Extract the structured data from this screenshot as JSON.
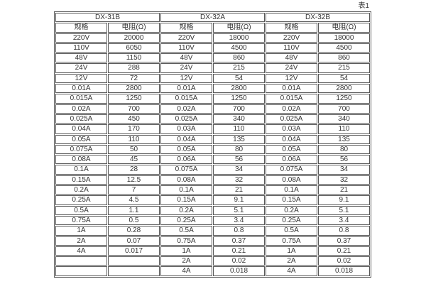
{
  "caption": "表1",
  "colors": {
    "border": "#595959",
    "text": "#333333",
    "background": "#ffffff"
  },
  "table": {
    "groups": [
      {
        "name": "DX-31B",
        "spec_header": "规格",
        "resistance_header": "电阻(Ω)"
      },
      {
        "name": "DX-32A",
        "spec_header": "规格",
        "resistance_header": "电阻(Ω)"
      },
      {
        "name": "DX-32B",
        "spec_header": "规格",
        "resistance_header": "电阻(Ω)"
      }
    ],
    "rows": [
      [
        "220V",
        "20000",
        "220V",
        "18000",
        "220V",
        "18000"
      ],
      [
        "110V",
        "6050",
        "110V",
        "4500",
        "110V",
        "4500"
      ],
      [
        "48V",
        "1150",
        "48V",
        "860",
        "48V",
        "860"
      ],
      [
        "24V",
        "288",
        "24V",
        "215",
        "24V",
        "215"
      ],
      [
        "12V",
        "72",
        "12V",
        "54",
        "12V",
        "54"
      ],
      [
        "0.01A",
        "2800",
        "0.01A",
        "2800",
        "0.01A",
        "2800"
      ],
      [
        "0.015A",
        "1250",
        "0.015A",
        "1250",
        "0.015A",
        "1250"
      ],
      [
        "0.02A",
        "700",
        "0.02A",
        "700",
        "0.02A",
        "700"
      ],
      [
        "0.025A",
        "450",
        "0.025A",
        "340",
        "0.025A",
        "340"
      ],
      [
        "0.04A",
        "170",
        "0.03A",
        "110",
        "0.03A",
        "110"
      ],
      [
        "0.05A",
        "110",
        "0.04A",
        "135",
        "0.04A",
        "135"
      ],
      [
        "0.075A",
        "50",
        "0.05A",
        "80",
        "0.05A",
        "80"
      ],
      [
        "0.08A",
        "45",
        "0.06A",
        "56",
        "0.06A",
        "56"
      ],
      [
        "0.1A",
        "28",
        "0.075A",
        "34",
        "0.075A",
        "34"
      ],
      [
        "0.15A",
        "12.5",
        "0.08A",
        "32",
        "0.08A",
        "32"
      ],
      [
        "0.2A",
        "7",
        "0.1A",
        "21",
        "0.1A",
        "21"
      ],
      [
        "0.25A",
        "4.5",
        "0.15A",
        "9.1",
        "0.15A",
        "9.1"
      ],
      [
        "0.5A",
        "1.1",
        "0.2A",
        "5.1",
        "0.2A",
        "5.1"
      ],
      [
        "0.75A",
        "0.5",
        "0.25A",
        "3.4",
        "0.25A",
        "3.4"
      ],
      [
        "1A",
        "0.28",
        "0.5A",
        "0.8",
        "0.5A",
        "0.8"
      ],
      [
        "2A",
        "0.07",
        "0.75A",
        "0.37",
        "0.75A",
        "0.37"
      ],
      [
        "4A",
        "0.017",
        "1A",
        "0.21",
        "1A",
        "0.21"
      ],
      [
        "",
        "",
        "2A",
        "0.02",
        "2A",
        "0.02"
      ],
      [
        "",
        "",
        "4A",
        "0.018",
        "4A",
        "0.018"
      ]
    ]
  }
}
